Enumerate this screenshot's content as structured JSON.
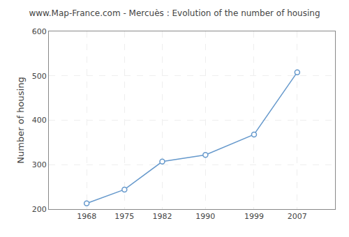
{
  "chart_data": {
    "type": "line",
    "title": "www.Map-France.com - Mercuès : Evolution of the number of housing",
    "ylabel": "Number of housing",
    "x": [
      1968,
      1975,
      1982,
      1990,
      1999,
      2007
    ],
    "values": [
      213,
      244,
      307,
      322,
      368,
      508
    ],
    "color": "#6699cc",
    "marker": "o",
    "xlim": [
      1961,
      2014
    ],
    "xticks": [
      1968,
      1975,
      1982,
      1990,
      1999,
      2007
    ],
    "ylim": [
      200,
      600
    ],
    "yticks": [
      200,
      300,
      400,
      500,
      600
    ],
    "grid": true
  }
}
